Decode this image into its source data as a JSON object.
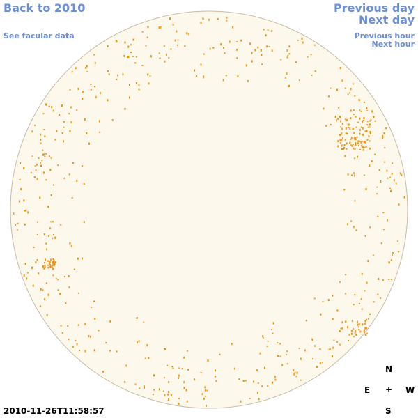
{
  "nav": {
    "back": "Back to 2010",
    "facular": "See facular data",
    "previous_day": "Previous day",
    "next_day": "Next day",
    "previous_hour": "Previous hour",
    "next_hour": "Next hour"
  },
  "timestamp": "2010-11-26T11:58:57",
  "compass": {
    "north": "N",
    "south": "S",
    "east": "E",
    "west": "W",
    "center": "+"
  }
}
